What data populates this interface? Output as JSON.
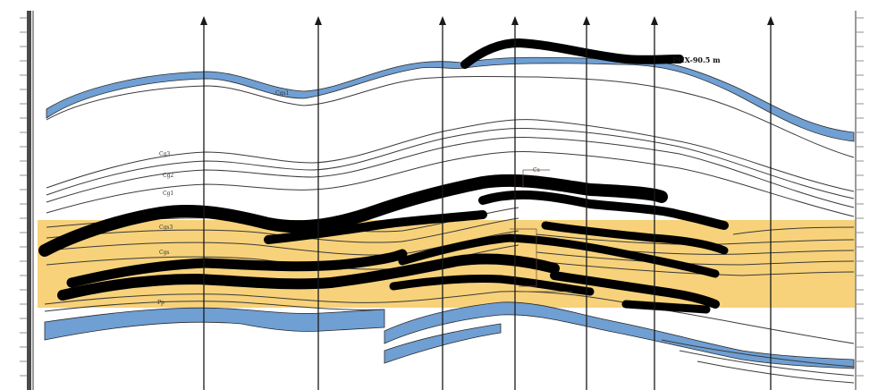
{
  "section": {
    "well_label": "PHX-90.5 m",
    "formation_labels": [
      "Cgs1",
      "Cg3",
      "Cg2",
      "Cg1",
      "Cgs3",
      "Cgs",
      "Cs",
      "Pp"
    ],
    "colors": {
      "background": "#ffffff",
      "reservoir_band": "#f7d27a",
      "blue_layer": "#6f9fd3",
      "black_layer": "#000000",
      "thin_line": "#3a3a3a",
      "well_line": "#1a1a1a",
      "axis_bar": "#4a4a4a"
    },
    "wells_count": 8
  }
}
